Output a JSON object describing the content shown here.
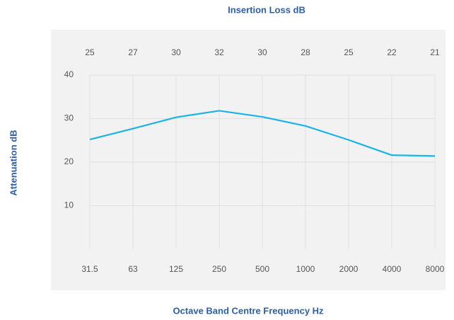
{
  "chart_data": {
    "type": "line",
    "title": "Insertion Loss dB",
    "insertion_loss": [
      25,
      27,
      30,
      32,
      30,
      28,
      25,
      22,
      21
    ],
    "categories": [
      "31.5",
      "63",
      "125",
      "250",
      "500",
      "1000",
      "2000",
      "4000",
      "8000"
    ],
    "series": [
      {
        "name": "Attenuation",
        "color": "#1cb3e8",
        "values": [
          25.2,
          27.7,
          30.3,
          31.8,
          30.4,
          28.3,
          25.1,
          21.6,
          21.4
        ]
      }
    ],
    "ylabel": "Attenuation dB",
    "xlabel": "Octave Band Centre Frequency Hz",
    "ylim": [
      0,
      40
    ],
    "yticks": [
      10,
      20,
      30,
      40
    ],
    "grid": true
  }
}
